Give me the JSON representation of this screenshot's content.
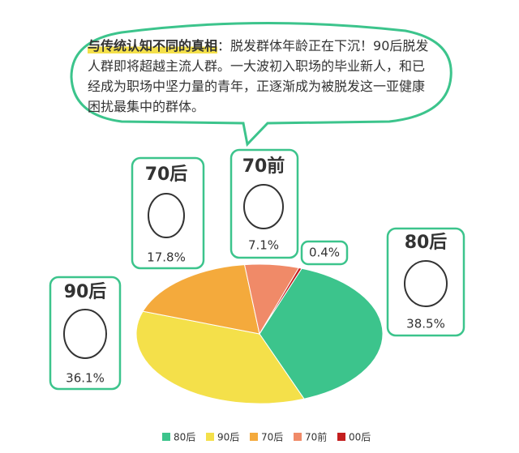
{
  "chart_data": {
    "type": "pie",
    "title": "与传统认知不同的真相",
    "subtitle": "：脱发群体年龄正在下沉！90后脱发人群即将超越主流人群。一大波初入职场的毕业新人，和已经成为职场中坚力量的青年，正逐渐成为被脱发这一亚健康困扰最集中的群体。",
    "categories": [
      "80后",
      "90后",
      "70后",
      "70前",
      "00后"
    ],
    "values": [
      38.5,
      36.1,
      17.8,
      7.1,
      0.4
    ],
    "value_labels": [
      "38.5%",
      "36.1%",
      "17.8%",
      "7.1%",
      "0.4%"
    ],
    "colors": [
      "#3cc48c",
      "#f4e04a",
      "#f4aa3c",
      "#f08a68",
      "#c41e1e"
    ],
    "legend": "bottom"
  }
}
